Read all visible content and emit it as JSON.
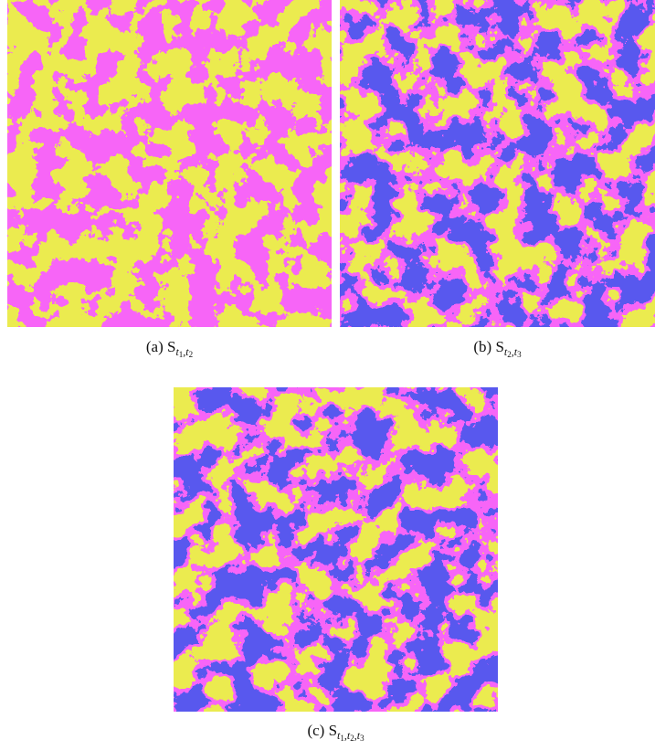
{
  "panels": [
    {
      "caption": {
        "label": "(a)",
        "symbol": "S",
        "separator": ",",
        "subscript": [
          {
            "var": "t",
            "index": "1"
          },
          {
            "var": "t",
            "index": "2"
          }
        ]
      }
    },
    {
      "caption": {
        "label": "(b)",
        "symbol": "S",
        "separator": ",",
        "subscript": [
          {
            "var": "t",
            "index": "2"
          },
          {
            "var": "t",
            "index": "3"
          }
        ]
      }
    },
    {
      "caption": {
        "label": "(c)",
        "symbol": "S",
        "separator": ",",
        "subscript": [
          {
            "var": "t",
            "index": "1"
          },
          {
            "var": "t",
            "index": "2"
          },
          {
            "var": "t",
            "index": "3"
          }
        ]
      }
    }
  ]
}
